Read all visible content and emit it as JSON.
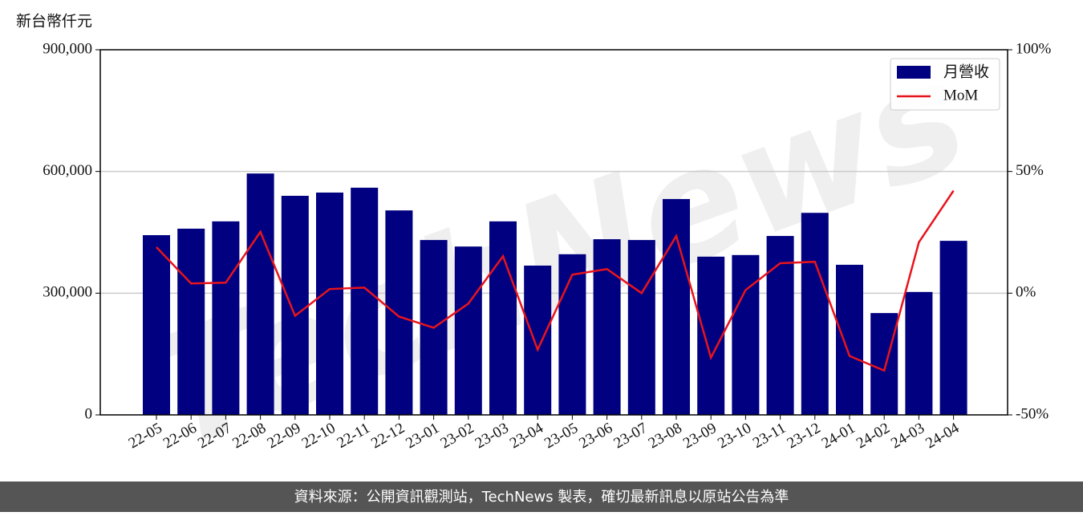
{
  "chart_data": {
    "type": "bar",
    "y_label": "新台幣仟元",
    "watermark": "TechNews",
    "footer": "資料來源：公開資訊觀測站，TechNews 製表，確切最新訊息以原站公告為準",
    "categories": [
      "22-05",
      "22-06",
      "22-07",
      "22-08",
      "22-09",
      "22-10",
      "22-11",
      "22-12",
      "23-01",
      "23-02",
      "23-03",
      "23-04",
      "23-05",
      "23-06",
      "23-07",
      "23-08",
      "23-09",
      "23-10",
      "23-11",
      "23-12",
      "24-01",
      "24-02",
      "24-03",
      "24-04"
    ],
    "series": [
      {
        "name": "月營收",
        "type": "bar",
        "color": "#000080",
        "values": [
          443000,
          459000,
          477000,
          595000,
          540000,
          548000,
          560000,
          504000,
          431000,
          415000,
          477000,
          368000,
          396000,
          433000,
          431000,
          532000,
          390000,
          394000,
          441000,
          498000,
          370000,
          251000,
          303000,
          429000
        ]
      },
      {
        "name": "MoM",
        "type": "line",
        "axis": "y2",
        "color": "#e8141c",
        "values": [
          18.9,
          4.0,
          4.3,
          25.2,
          -9.3,
          1.7,
          2.3,
          -9.6,
          -14.2,
          -4.3,
          15.2,
          -23.2,
          7.6,
          9.9,
          0,
          23.5,
          -26.5,
          1.3,
          12.3,
          12.9,
          -25.8,
          -31.8,
          20.9,
          42.1
        ]
      }
    ],
    "ylim": [
      0,
      900000
    ],
    "yticks": [
      0,
      {
        "value": 300000,
        "label": "300,000"
      },
      {
        "value": 600000,
        "label": "600,000"
      },
      {
        "value": 900000,
        "label": "900,000"
      }
    ],
    "y2lim": [
      -50,
      100
    ],
    "y2ticks": [
      {
        "value": -50,
        "label": "-50%"
      },
      {
        "value": 0,
        "label": "0%"
      },
      {
        "value": 50,
        "label": "50%"
      },
      {
        "value": 100,
        "label": "100%"
      }
    ],
    "grid": true,
    "legend": "upper right"
  }
}
